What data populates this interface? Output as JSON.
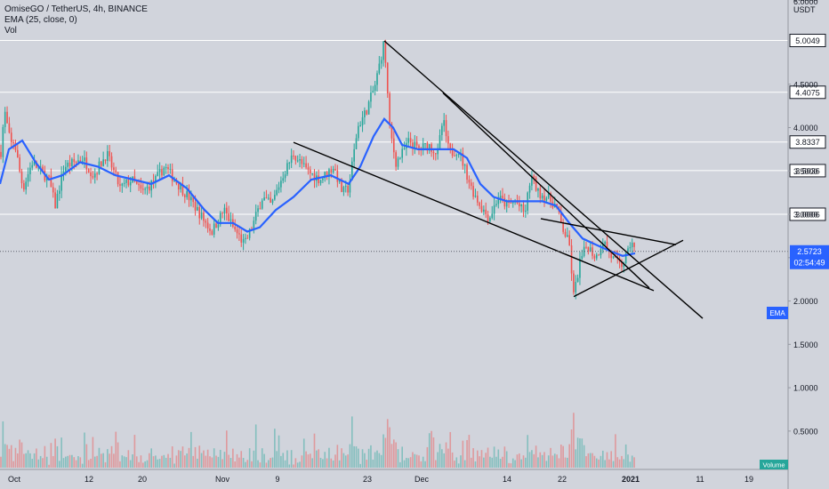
{
  "header": {
    "symbol_line": "OmiseGO / TetherUS, 4h, BINANCE",
    "indicator": "EMA (25, close, 0)",
    "volume_label": "Vol"
  },
  "price_axis": {
    "unit": "USDT",
    "top_partial_label": "6.0000",
    "ticks": [
      "5.5000",
      "4.5000",
      "4.0000",
      "3.5000",
      "3.0000",
      "2.5000",
      "2.0000",
      "1.5000",
      "1.0000",
      "0.5000"
    ]
  },
  "time_axis": {
    "labels": [
      "Oct",
      "12",
      "20",
      "Nov",
      "9",
      "23",
      "Dec",
      "14",
      "22",
      "2021",
      "11",
      "19"
    ]
  },
  "badges": {
    "current_price": "2.5723",
    "countdown": "02:54:49",
    "ema_tag": "EMA",
    "volume_tag": "Volume"
  },
  "colors": {
    "background": "#d1d4dc",
    "up": "#26a69a",
    "down": "#ef5350",
    "ema": "#2962ff",
    "level_line": "#ffffff",
    "trendline": "#000000",
    "price_badge": "#2962ff",
    "ema_badge": "#2962ff",
    "volume_badge": "#26a69a",
    "axis_text": "#131722"
  },
  "chart_data": {
    "type": "candlestick",
    "title": "OmiseGO / TetherUS, 4h, BINANCE",
    "y_unit": "USDT",
    "ylim": [
      0.4,
      6.0
    ],
    "x_labels": [
      "Oct",
      "12",
      "20",
      "Nov",
      "9",
      "23",
      "Dec",
      "14",
      "22",
      "2021",
      "11",
      "19"
    ],
    "horizontal_levels": [
      5.0049,
      4.4075,
      3.8337,
      3.5036,
      3.0006
    ],
    "current_price": 2.5723,
    "price_path": [
      [
        0,
        3.6
      ],
      [
        5,
        4.2
      ],
      [
        12,
        3.8
      ],
      [
        16,
        3.85
      ],
      [
        22,
        3.5
      ],
      [
        26,
        3.3
      ],
      [
        36,
        3.6
      ],
      [
        55,
        3.4
      ],
      [
        62,
        3.1
      ],
      [
        72,
        3.55
      ],
      [
        84,
        3.6
      ],
      [
        93,
        3.65
      ],
      [
        105,
        3.45
      ],
      [
        120,
        3.7
      ],
      [
        135,
        3.3
      ],
      [
        148,
        3.4
      ],
      [
        160,
        3.25
      ],
      [
        175,
        3.4
      ],
      [
        185,
        3.55
      ],
      [
        200,
        3.35
      ],
      [
        212,
        3.2
      ],
      [
        225,
        3.0
      ],
      [
        238,
        2.8
      ],
      [
        252,
        3.05
      ],
      [
        262,
        2.85
      ],
      [
        275,
        2.65
      ],
      [
        285,
        2.9
      ],
      [
        295,
        3.2
      ],
      [
        305,
        3.1
      ],
      [
        318,
        3.45
      ],
      [
        330,
        3.7
      ],
      [
        345,
        3.5
      ],
      [
        360,
        3.4
      ],
      [
        375,
        3.55
      ],
      [
        385,
        3.25
      ],
      [
        392,
        3.3
      ],
      [
        402,
        4.0
      ],
      [
        412,
        4.2
      ],
      [
        422,
        4.5
      ],
      [
        432,
        5.0
      ],
      [
        438,
        4.0
      ],
      [
        445,
        3.6
      ],
      [
        452,
        3.7
      ],
      [
        460,
        3.85
      ],
      [
        470,
        3.75
      ],
      [
        482,
        3.8
      ],
      [
        492,
        3.7
      ],
      [
        498,
        4.1
      ],
      [
        505,
        3.7
      ],
      [
        515,
        3.75
      ],
      [
        522,
        3.55
      ],
      [
        530,
        3.3
      ],
      [
        540,
        3.1
      ],
      [
        550,
        2.95
      ],
      [
        560,
        3.2
      ],
      [
        570,
        3.1
      ],
      [
        580,
        3.15
      ],
      [
        590,
        3.0
      ],
      [
        597,
        3.45
      ],
      [
        605,
        3.25
      ],
      [
        615,
        3.2
      ],
      [
        625,
        3.1
      ],
      [
        632,
        2.85
      ],
      [
        640,
        2.65
      ],
      [
        645,
        2.05
      ],
      [
        652,
        2.45
      ],
      [
        660,
        2.65
      ],
      [
        670,
        2.5
      ],
      [
        678,
        2.7
      ],
      [
        688,
        2.5
      ],
      [
        698,
        2.4
      ],
      [
        706,
        2.55
      ],
      [
        710,
        2.72
      ],
      [
        714,
        2.55
      ]
    ],
    "ema_path": [
      [
        0,
        3.35
      ],
      [
        10,
        3.75
      ],
      [
        25,
        3.85
      ],
      [
        40,
        3.6
      ],
      [
        55,
        3.4
      ],
      [
        70,
        3.45
      ],
      [
        90,
        3.6
      ],
      [
        110,
        3.55
      ],
      [
        130,
        3.45
      ],
      [
        150,
        3.4
      ],
      [
        170,
        3.35
      ],
      [
        190,
        3.45
      ],
      [
        210,
        3.3
      ],
      [
        230,
        3.05
      ],
      [
        245,
        2.9
      ],
      [
        262,
        2.9
      ],
      [
        278,
        2.8
      ],
      [
        292,
        2.85
      ],
      [
        310,
        3.05
      ],
      [
        330,
        3.2
      ],
      [
        350,
        3.4
      ],
      [
        372,
        3.45
      ],
      [
        392,
        3.35
      ],
      [
        405,
        3.55
      ],
      [
        420,
        3.9
      ],
      [
        432,
        4.1
      ],
      [
        442,
        4.0
      ],
      [
        452,
        3.8
      ],
      [
        470,
        3.75
      ],
      [
        490,
        3.75
      ],
      [
        510,
        3.75
      ],
      [
        525,
        3.65
      ],
      [
        540,
        3.35
      ],
      [
        555,
        3.2
      ],
      [
        570,
        3.15
      ],
      [
        590,
        3.15
      ],
      [
        610,
        3.15
      ],
      [
        625,
        3.1
      ],
      [
        640,
        2.9
      ],
      [
        655,
        2.72
      ],
      [
        670,
        2.65
      ],
      [
        685,
        2.58
      ],
      [
        700,
        2.52
      ],
      [
        714,
        2.55
      ]
    ],
    "trendlines": [
      {
        "from": [
          432,
          5.0
        ],
        "to": [
          790,
          1.8
        ]
      },
      {
        "from": [
          330,
          3.83
        ],
        "to": [
          735,
          2.12
        ]
      },
      {
        "from": [
          498,
          4.4
        ],
        "to": [
          730,
          2.15
        ]
      },
      {
        "from": [
          608,
          2.95
        ],
        "to": [
          760,
          2.65
        ]
      },
      {
        "from": [
          645,
          2.05
        ],
        "to": [
          768,
          2.7
        ]
      }
    ]
  }
}
